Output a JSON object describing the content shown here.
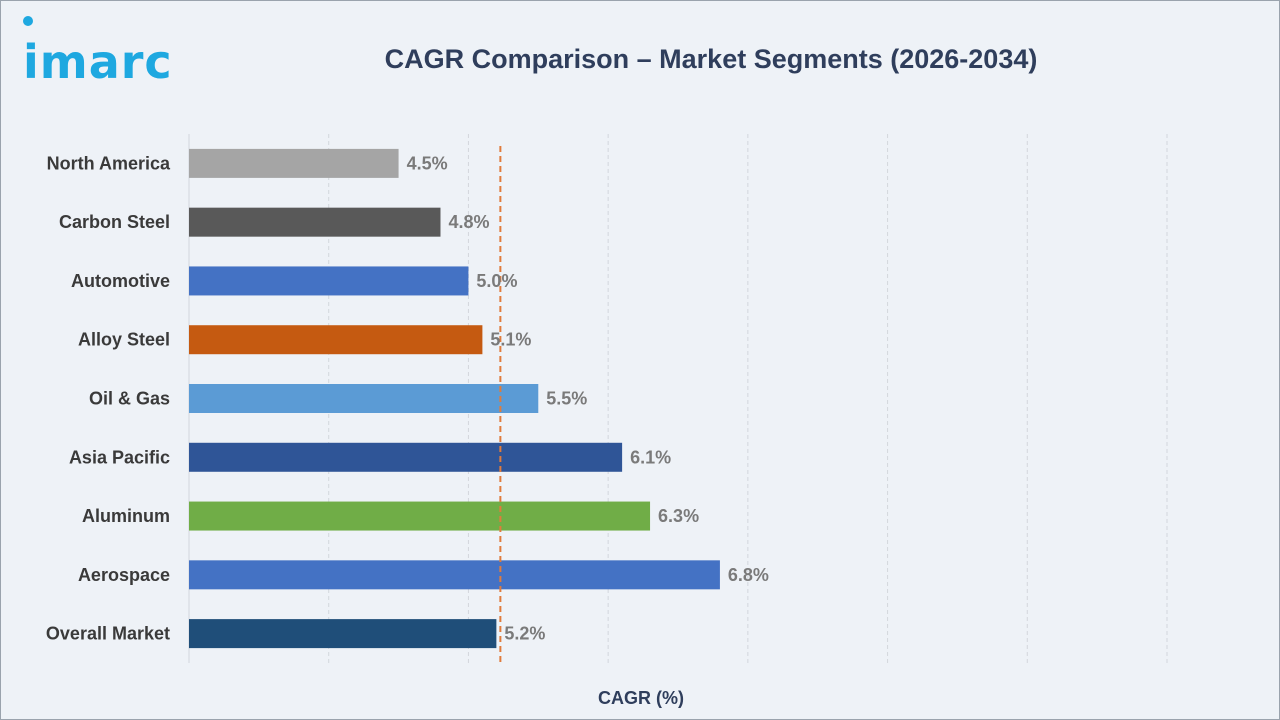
{
  "logo": {
    "text": "imarc"
  },
  "chart_data": {
    "type": "bar",
    "orientation": "horizontal",
    "title": "CAGR Comparison – Market Segments (2026-2034)",
    "xlabel": "CAGR (%)",
    "ylabel": "",
    "xlim": [
      3.0,
      10.0
    ],
    "grid": "vertical",
    "categories": [
      "North America",
      "Carbon Steel",
      "Automotive",
      "Alloy Steel",
      "Oil & Gas",
      "Asia Pacific",
      "Aluminum",
      "Aerospace",
      "Overall Market"
    ],
    "values": [
      4.5,
      4.8,
      5.0,
      5.1,
      5.5,
      6.1,
      6.3,
      6.8,
      5.2
    ],
    "value_labels": [
      "4.5%",
      "4.8%",
      "5.0%",
      "5.1%",
      "5.5%",
      "6.1%",
      "6.3%",
      "6.8%",
      "5.2%"
    ],
    "colors": [
      "#a5a5a5",
      "#595959",
      "#4472c4",
      "#c55a11",
      "#5b9bd5",
      "#2f5597",
      "#70ad47",
      "#4472c4",
      "#1f4e79"
    ],
    "reference_line": {
      "value": 5.2,
      "color": "#e07b3c",
      "style": "dashed"
    }
  }
}
